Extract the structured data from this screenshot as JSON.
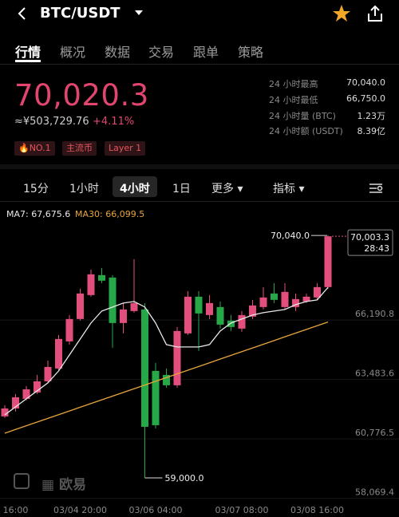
{
  "header": {
    "pair": "BTC/USDT",
    "tabs": [
      "行情",
      "概况",
      "数据",
      "交易",
      "跟单",
      "策略"
    ]
  },
  "ticker": {
    "price": "70,020.3",
    "cny": "≈¥503,729.76",
    "change": "+4.11%",
    "tags": [
      "NO.1",
      "主流币",
      "Layer 1"
    ],
    "stats": [
      {
        "label": "24 小时最高",
        "value": "70,040.0"
      },
      {
        "label": "24 小时最低",
        "value": "66,750.0"
      },
      {
        "label": "24 小时量 (BTC)",
        "value": "1.23万"
      },
      {
        "label": "24 小时额 (USDT)",
        "value": "8.39亿"
      }
    ]
  },
  "intervals": [
    "15分",
    "1小时",
    "4小时",
    "1日",
    "更多",
    "指标"
  ],
  "watermark": "欧易",
  "chart_data": {
    "type": "candlestick",
    "categories": [
      null,
      "16:00",
      null,
      null,
      null,
      null,
      null,
      "03/04 20:00",
      null,
      null,
      null,
      null,
      null,
      null,
      "03/06 04:00",
      null,
      null,
      null,
      null,
      null,
      null,
      null,
      "03/07 08:00",
      null,
      null,
      null,
      null,
      null,
      null,
      "03/08 16:00",
      null
    ],
    "open": [
      61800,
      62163,
      62600,
      62890,
      63399,
      63981,
      65217,
      66236,
      67326,
      68235,
      68126,
      66054,
      66599,
      66672,
      63872,
      63690,
      63218,
      65581,
      67254,
      66417,
      66781,
      66163,
      65799,
      66345,
      66781,
      67399,
      66781,
      66781,
      67035,
      67217,
      67690
    ],
    "high": [
      62309,
      62818,
      63181,
      63690,
      64345,
      65508,
      66417,
      67617,
      68490,
      68563,
      68235,
      66963,
      68963,
      66963,
      64236,
      63981,
      65872,
      67508,
      67508,
      67326,
      67035,
      66417,
      66599,
      67108,
      67690,
      67872,
      67872,
      67399,
      67399,
      67872,
      70040
    ],
    "low": [
      61727,
      62018,
      62527,
      62818,
      63327,
      63909,
      65072,
      66163,
      67254,
      67872,
      64927,
      65581,
      66526,
      59000,
      61254,
      63109,
      63109,
      65508,
      64781,
      66236,
      65799,
      65690,
      65654,
      66236,
      66672,
      66963,
      66672,
      66599,
      66963,
      67108,
      67617
    ],
    "close": [
      62163,
      62672,
      63036,
      63399,
      64054,
      65327,
      66236,
      67399,
      68272,
      67981,
      66054,
      66672,
      66963,
      61327,
      61400,
      63218,
      65690,
      67254,
      66490,
      66963,
      65981,
      65872,
      66417,
      66854,
      67217,
      67108,
      67472,
      67145,
      67254,
      67690,
      70003.3
    ],
    "up_color": "#e34f7c",
    "down_color": "#27a848",
    "series": [
      {
        "name": "MA7",
        "legend": "MA7: 67,675.6",
        "color": "#e8e8e8",
        "values": [
          61872,
          62236,
          62600,
          62963,
          63327,
          63872,
          64599,
          65327,
          66054,
          66599,
          66781,
          66963,
          67035,
          66781,
          66054,
          65072,
          64963,
          64963,
          64963,
          65072,
          65690,
          66054,
          66236,
          66417,
          66527,
          66599,
          66672,
          66890,
          67035,
          67108,
          67675.6
        ]
      },
      {
        "name": "MA30",
        "legend": "MA30: 66,099.5",
        "color": "#e8a63a",
        "values": [
          61036,
          61205,
          61374,
          61542,
          61711,
          61880,
          62049,
          62218,
          62386,
          62555,
          62724,
          62893,
          63062,
          63230,
          63399,
          63568,
          63737,
          63906,
          64074,
          64243,
          64412,
          64581,
          64750,
          64918,
          65087,
          65256,
          65425,
          65594,
          65762,
          65931,
          66099.5
        ]
      }
    ],
    "ylim": [
      57800,
      71500
    ],
    "yticks": [
      {
        "value": 58069.4,
        "label": "58,069.4"
      },
      {
        "value": 60776.5,
        "label": "60,776.5"
      },
      {
        "value": 63483.6,
        "label": "63,483.6"
      },
      {
        "value": 66190.8,
        "label": "66,190.8"
      }
    ],
    "high_label": {
      "value": 70040,
      "label": "70,040.0"
    },
    "low_label": {
      "value": 59000,
      "label": "59,000.0"
    },
    "last_price": {
      "value": 70003.3,
      "label": "70,003.3"
    },
    "countdown": "28:43"
  }
}
